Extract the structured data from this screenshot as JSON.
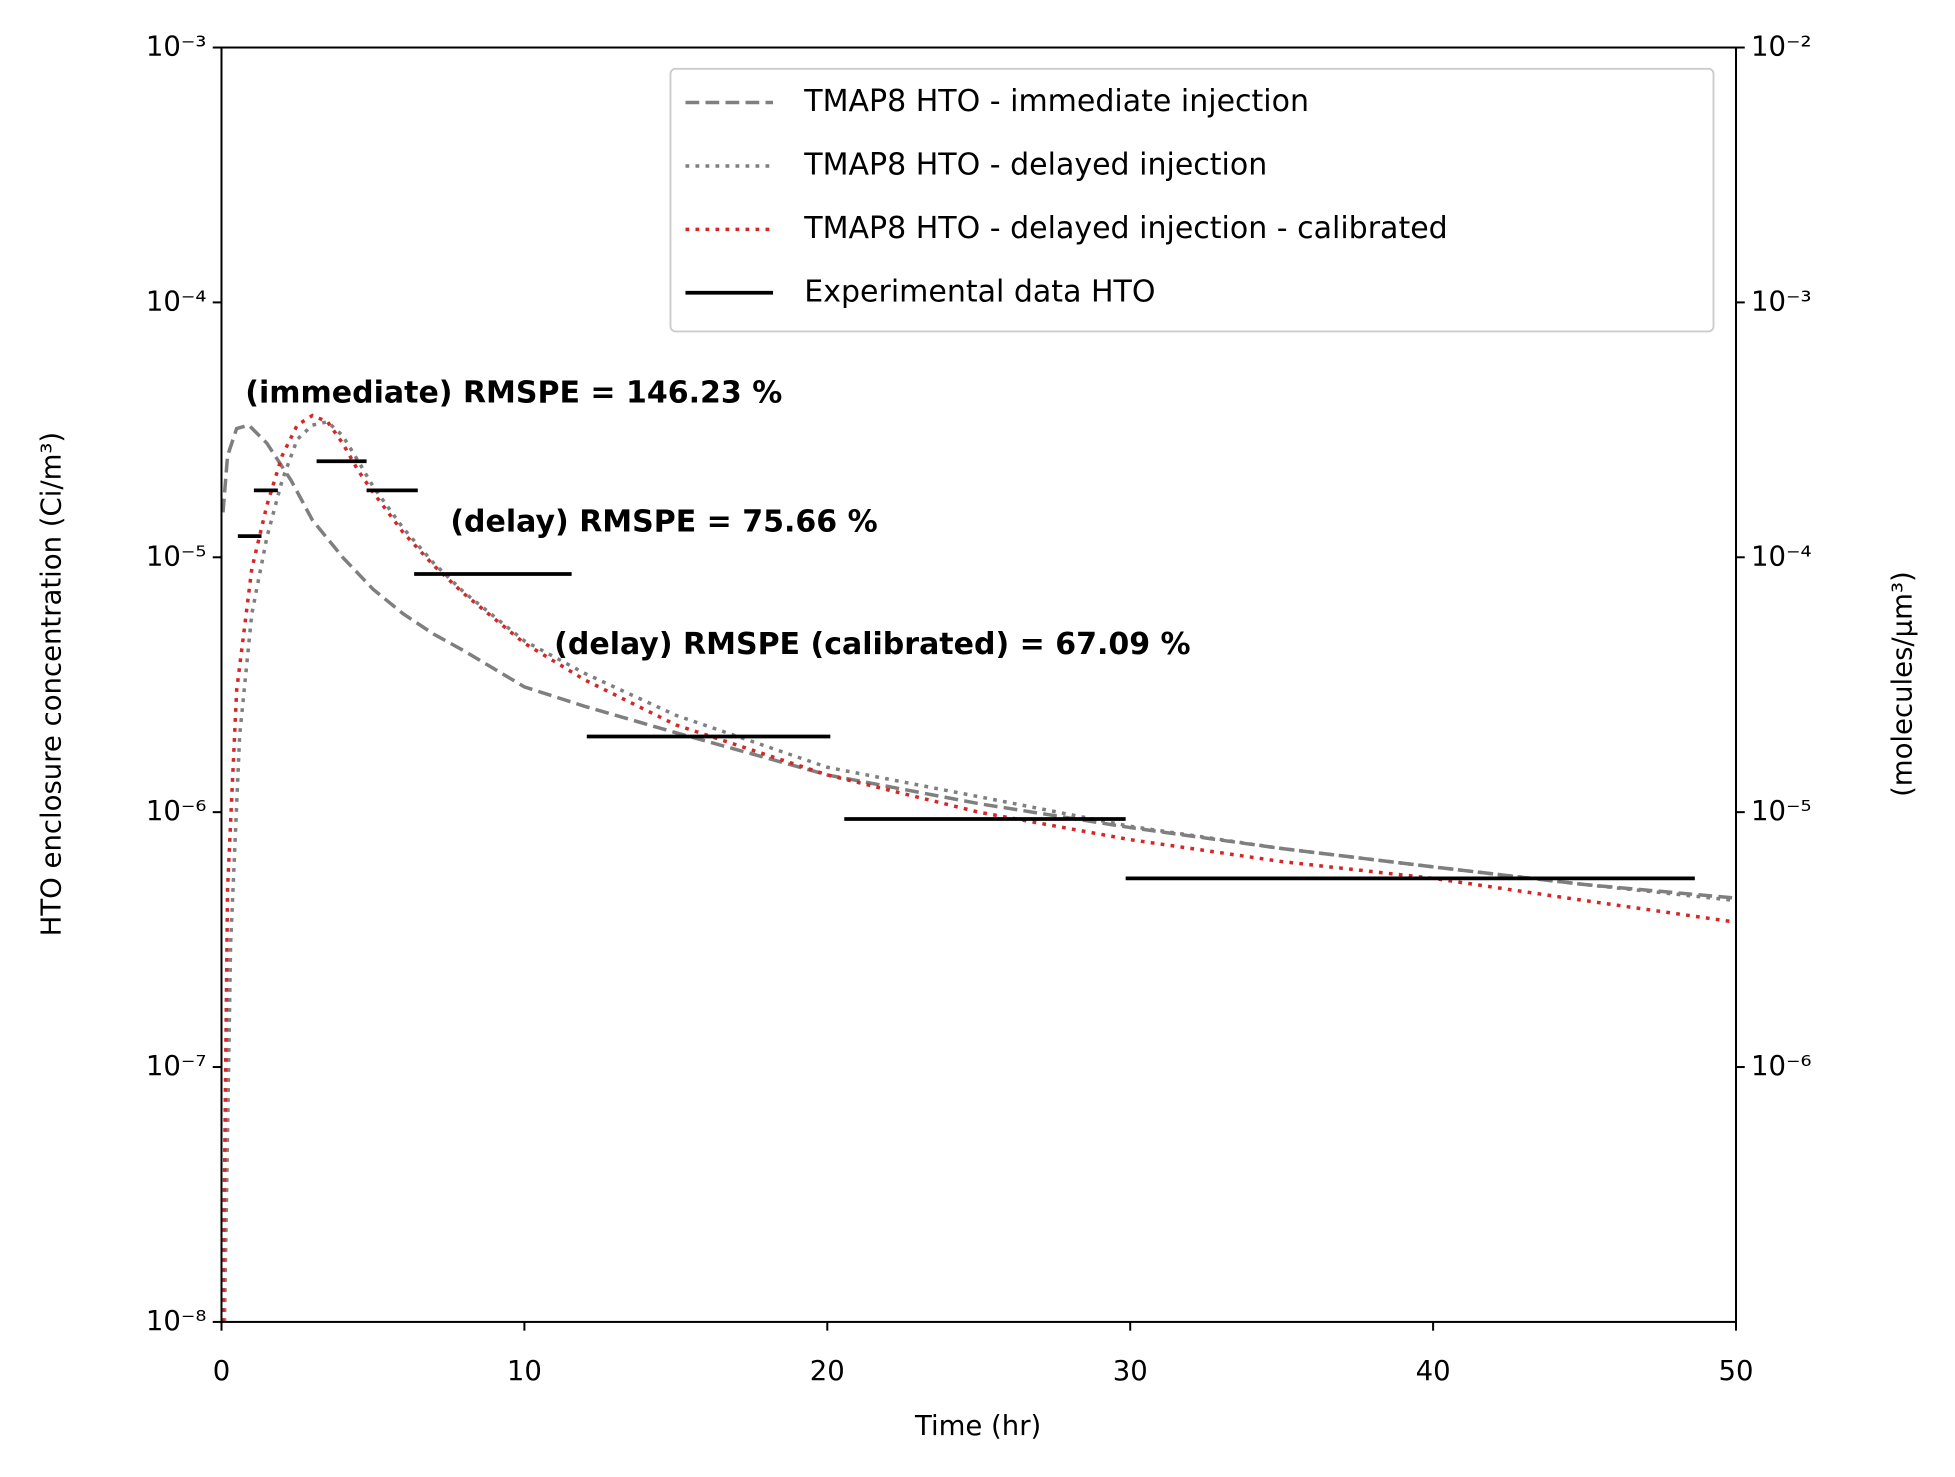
{
  "chart_data": {
    "type": "line",
    "xlabel": "Time (hr)",
    "ylabel": "HTO enclosure concentration (Ci/m³)",
    "y2label": "(molecules/μm³)",
    "yscale": "log",
    "y2scale": "log",
    "xlim": [
      0,
      50
    ],
    "xticks": [
      0,
      10,
      20,
      30,
      40,
      50
    ],
    "ylim": [
      1e-08,
      0.001
    ],
    "yticks": [
      {
        "value": 1e-08,
        "label": "10⁻⁸"
      },
      {
        "value": 1e-07,
        "label": "10⁻⁷"
      },
      {
        "value": 1e-06,
        "label": "10⁻⁶"
      },
      {
        "value": 1e-05,
        "label": "10⁻⁵"
      },
      {
        "value": 0.0001,
        "label": "10⁻⁴"
      },
      {
        "value": 0.001,
        "label": "10⁻³"
      }
    ],
    "y2lim": [
      1e-07,
      0.01
    ],
    "y2ticks": [
      {
        "value": 1e-06,
        "label": "10⁻⁶"
      },
      {
        "value": 1e-05,
        "label": "10⁻⁵"
      },
      {
        "value": 0.0001,
        "label": "10⁻⁴"
      },
      {
        "value": 0.001,
        "label": "10⁻³"
      },
      {
        "value": 0.01,
        "label": "10⁻²"
      }
    ],
    "legend": "upper right",
    "series": [
      {
        "name": "TMAP8 HTO - immediate injection",
        "color": "#7f7f7f",
        "style": "dashed",
        "x": [
          0.05,
          0.2,
          0.5,
          0.9,
          1.5,
          2.3,
          3,
          4,
          5,
          6,
          7,
          8,
          10,
          12,
          15,
          20,
          25,
          30,
          35,
          40,
          45,
          50
        ],
        "values": [
          1.5e-05,
          2.5e-05,
          3.2e-05,
          3.3e-05,
          2.8e-05,
          2e-05,
          1.4e-05,
          1e-05,
          7.5e-06,
          6e-06,
          5e-06,
          4.3e-06,
          3.1e-06,
          2.6e-06,
          2.05e-06,
          1.4e-06,
          1.08e-06,
          8.7e-07,
          7.2e-07,
          6.1e-07,
          5.2e-07,
          4.6e-07
        ]
      },
      {
        "name": "TMAP8 HTO - delayed injection",
        "color": "#7f7f7f",
        "style": "dotted",
        "x": [
          0.1,
          0.3,
          0.6,
          1,
          1.5,
          2,
          2.5,
          3,
          3.5,
          4,
          4.5,
          5,
          6,
          7,
          8,
          10,
          12,
          15,
          20,
          25,
          30,
          35,
          40,
          45,
          50
        ],
        "values": [
          1e-08,
          3e-07,
          2e-06,
          6e-06,
          1.2e-05,
          2e-05,
          2.9e-05,
          3.3e-05,
          3.4e-05,
          3e-05,
          2.4e-05,
          1.9e-05,
          1.3e-05,
          9.5e-06,
          7.3e-06,
          4.7e-06,
          3.5e-06,
          2.4e-06,
          1.5e-06,
          1.15e-06,
          8.8e-07,
          7.2e-07,
          6.1e-07,
          5.2e-07,
          4.5e-07
        ]
      },
      {
        "name": "TMAP8 HTO - delayed injection - calibrated",
        "color": "#d62728",
        "style": "dotted",
        "x": [
          0.05,
          0.2,
          0.5,
          1,
          1.5,
          2,
          2.5,
          3,
          3.5,
          4,
          4.5,
          5,
          6,
          7,
          8,
          10,
          12,
          15,
          20,
          25,
          30,
          35,
          40,
          45,
          50
        ],
        "values": [
          1e-08,
          5e-07,
          3e-06,
          9e-06,
          1.6e-05,
          2.5e-05,
          3.3e-05,
          3.6e-05,
          3.4e-05,
          2.8e-05,
          2.2e-05,
          1.8e-05,
          1.25e-05,
          9.3e-06,
          7.2e-06,
          4.6e-06,
          3.3e-06,
          2.2e-06,
          1.4e-06,
          1e-06,
          7.8e-07,
          6.4e-07,
          5.5e-07,
          4.5e-07,
          3.7e-07
        ]
      },
      {
        "name": "Experimental data HTO",
        "color": "#000000",
        "style": "solid",
        "x": [
          0.54,
          1.32,
          null,
          1.07,
          1.86,
          null,
          3.14,
          4.79,
          null,
          4.79,
          6.48,
          null,
          6.36,
          11.56,
          null,
          12.06,
          20.1,
          null,
          20.56,
          29.85,
          null,
          29.85,
          48.64
        ],
        "values": [
          1.21e-05,
          1.21e-05,
          null,
          1.83e-05,
          1.83e-05,
          null,
          2.38e-05,
          2.38e-05,
          null,
          1.83e-05,
          1.83e-05,
          null,
          8.6e-06,
          8.6e-06,
          null,
          1.98e-06,
          1.98e-06,
          null,
          9.4e-07,
          9.4e-07,
          null,
          5.5e-07,
          5.5e-07
        ]
      }
    ],
    "annotations": [
      {
        "text": "(immediate) RMSPE = 146.23 %",
        "color": "#000000"
      },
      {
        "text": "(delay) RMSPE = 75.66 %",
        "color": "#000000"
      },
      {
        "text": "(delay) RMSPE (calibrated) = 67.09 %",
        "color": "#d62728"
      }
    ]
  }
}
